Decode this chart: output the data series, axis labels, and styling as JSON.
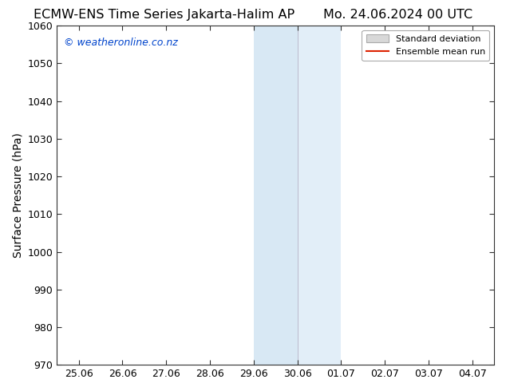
{
  "title_left": "ECMW-ENS Time Series Jakarta-Halim AP",
  "title_right": "Mo. 24.06.2024 00 UTC",
  "ylabel": "Surface Pressure (hPa)",
  "ylim": [
    970,
    1060
  ],
  "ytick_interval": 10,
  "background_color": "#ffffff",
  "plot_bg_color": "#ffffff",
  "watermark": "© weatheronline.co.nz",
  "watermark_color": "#0044cc",
  "x_tick_labels": [
    "25.06",
    "26.06",
    "27.06",
    "28.06",
    "29.06",
    "30.06",
    "01.07",
    "02.07",
    "03.07",
    "04.07"
  ],
  "x_tick_positions": [
    0,
    1,
    2,
    3,
    4,
    5,
    6,
    7,
    8,
    9
  ],
  "shaded_region_start": 4,
  "shaded_region_end": 6,
  "shade_color_left": "#d8e8f4",
  "shade_color_right": "#e2eef8",
  "divider_x": 5,
  "legend_std_dev_facecolor": "#d8d8d8",
  "legend_std_dev_edgecolor": "#aaaaaa",
  "legend_mean_run_color": "#dd2200",
  "title_fontsize": 11.5,
  "label_fontsize": 10,
  "tick_fontsize": 9,
  "watermark_fontsize": 9
}
